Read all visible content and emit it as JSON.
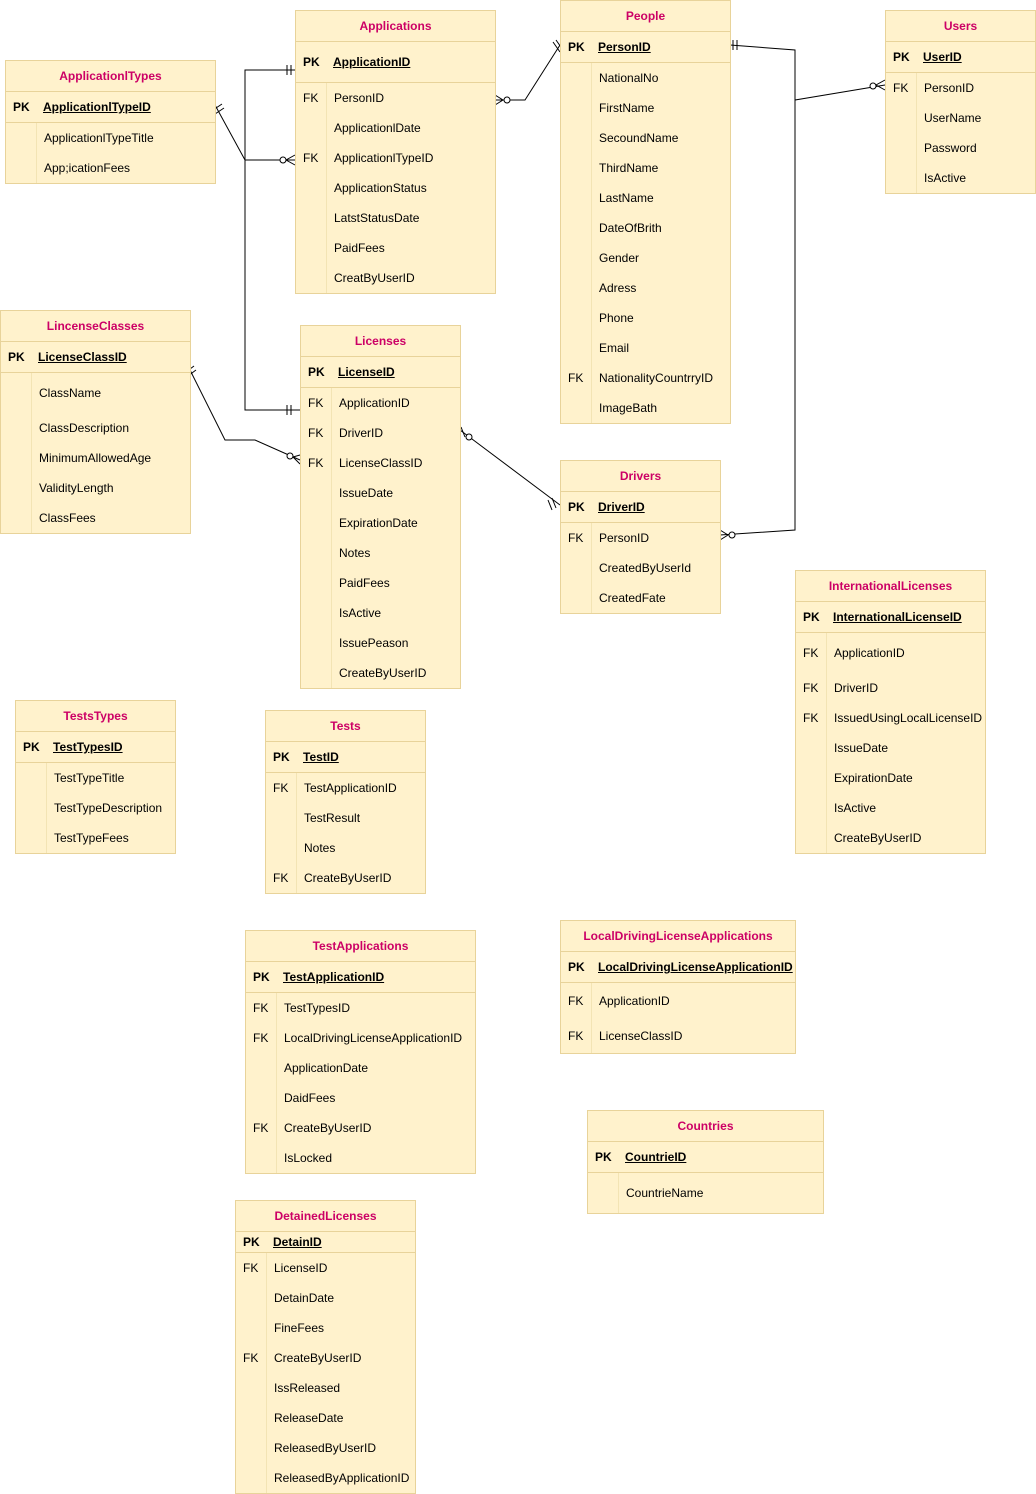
{
  "colors": {
    "title": "#cc0066",
    "fill": "#fff2cc",
    "stroke": "#e8d39a"
  },
  "tables": {
    "applicationtypes": {
      "title": "ApplicationlTypes",
      "pk": "ApplicationlTypeID",
      "rows": [
        {
          "key": "",
          "name": "ApplicationlTypeTitle"
        },
        {
          "key": "",
          "name": "App;icationFees"
        }
      ]
    },
    "applications": {
      "title": "Applications",
      "pk": "ApplicationID",
      "rows": [
        {
          "key": "FK",
          "name": "PersonID"
        },
        {
          "key": "",
          "name": "ApplicationlDate"
        },
        {
          "key": "FK",
          "name": "ApplicationlTypeID"
        },
        {
          "key": "",
          "name": "ApplicationStatus"
        },
        {
          "key": "",
          "name": "LatstStatusDate"
        },
        {
          "key": "",
          "name": "PaidFees"
        },
        {
          "key": "",
          "name": "CreatByUserID"
        }
      ]
    },
    "people": {
      "title": "People",
      "pk": "PersonID",
      "rows": [
        {
          "key": "",
          "name": "NationalNo"
        },
        {
          "key": "",
          "name": "FirstName"
        },
        {
          "key": "",
          "name": "SecoundName"
        },
        {
          "key": "",
          "name": "ThirdName"
        },
        {
          "key": "",
          "name": "LastName"
        },
        {
          "key": "",
          "name": "DateOfBrith"
        },
        {
          "key": "",
          "name": "Gender"
        },
        {
          "key": "",
          "name": "Adress"
        },
        {
          "key": "",
          "name": "Phone"
        },
        {
          "key": "",
          "name": "Email"
        },
        {
          "key": "FK",
          "name": "NationalityCountrryID"
        },
        {
          "key": "",
          "name": "ImageBath"
        }
      ]
    },
    "users": {
      "title": "Users",
      "pk": "UserID",
      "rows": [
        {
          "key": "FK",
          "name": "PersonID"
        },
        {
          "key": "",
          "name": "UserName"
        },
        {
          "key": "",
          "name": "Password"
        },
        {
          "key": "",
          "name": "IsActive"
        }
      ]
    },
    "licenseclasses": {
      "title": "LincenseClasses",
      "pk": "LicenseClassID",
      "rows": [
        {
          "key": "",
          "name": "ClassName"
        },
        {
          "key": "",
          "name": "ClassDescription"
        },
        {
          "key": "",
          "name": "MinimumAllowedAge"
        },
        {
          "key": "",
          "name": "ValidityLength"
        },
        {
          "key": "",
          "name": "ClassFees"
        }
      ]
    },
    "licenses": {
      "title": "Licenses",
      "pk": "LicenseID",
      "rows": [
        {
          "key": "FK",
          "name": "ApplicationID"
        },
        {
          "key": "FK",
          "name": "DriverID"
        },
        {
          "key": "FK",
          "name": "LicenseClassID"
        },
        {
          "key": "",
          "name": "IssueDate"
        },
        {
          "key": "",
          "name": "ExpirationDate"
        },
        {
          "key": "",
          "name": "Notes"
        },
        {
          "key": "",
          "name": "PaidFees"
        },
        {
          "key": "",
          "name": "IsActive"
        },
        {
          "key": "",
          "name": "IssuePeason"
        },
        {
          "key": "",
          "name": "CreateByUserID"
        }
      ]
    },
    "drivers": {
      "title": "Drivers",
      "pk": "DriverID",
      "rows": [
        {
          "key": "FK",
          "name": "PersonID"
        },
        {
          "key": "",
          "name": "CreatedByUserId"
        },
        {
          "key": "",
          "name": "CreatedFate"
        }
      ]
    },
    "international": {
      "title": "InternationalLicenses",
      "pk": "InternationalLicenseID",
      "rows": [
        {
          "key": "FK",
          "name": "ApplicationID"
        },
        {
          "key": "FK",
          "name": "DriverID"
        },
        {
          "key": "FK",
          "name": "IssuedUsingLocalLicenseID"
        },
        {
          "key": "",
          "name": "IssueDate"
        },
        {
          "key": "",
          "name": "ExpirationDate"
        },
        {
          "key": "",
          "name": "IsActive"
        },
        {
          "key": "",
          "name": "CreateByUserID"
        }
      ]
    },
    "teststypes": {
      "title": "TestsTypes",
      "pk": "TestTypesID",
      "rows": [
        {
          "key": "",
          "name": "TestTypeTitle"
        },
        {
          "key": "",
          "name": "TestTypeDescription"
        },
        {
          "key": "",
          "name": "TestTypeFees"
        }
      ]
    },
    "tests": {
      "title": "Tests",
      "pk": "TestID",
      "rows": [
        {
          "key": "FK",
          "name": "TestApplicationID"
        },
        {
          "key": "",
          "name": "TestResult"
        },
        {
          "key": "",
          "name": "Notes"
        },
        {
          "key": "FK",
          "name": "CreateByUserID"
        }
      ]
    },
    "testapplications": {
      "title": "TestApplications",
      "pk": "TestApplicationID",
      "rows": [
        {
          "key": "FK",
          "name": "TestTypesID"
        },
        {
          "key": "FK",
          "name": "LocalDrivingLicenseApplicationID"
        },
        {
          "key": "",
          "name": "ApplicationDate"
        },
        {
          "key": "",
          "name": "DaidFees"
        },
        {
          "key": "FK",
          "name": "CreateByUserID"
        },
        {
          "key": "",
          "name": "IsLocked"
        }
      ]
    },
    "localdriving": {
      "title": "LocalDrivingLicenseApplications",
      "pk": "LocalDrivingLicenseApplicationID",
      "rows": [
        {
          "key": "FK",
          "name": "ApplicationID"
        },
        {
          "key": "FK",
          "name": "LicenseClassID"
        }
      ]
    },
    "countries": {
      "title": "Countries",
      "pk": "CountrieID",
      "rows": [
        {
          "key": "",
          "name": "CountrieName"
        }
      ]
    },
    "detained": {
      "title": "DetainedLicenses",
      "pk": "DetainID",
      "rows": [
        {
          "key": "FK",
          "name": "LicenseID"
        },
        {
          "key": "",
          "name": "DetainDate"
        },
        {
          "key": "",
          "name": "FineFees"
        },
        {
          "key": "FK",
          "name": "CreateByUserID"
        },
        {
          "key": "",
          "name": "IssReleased"
        },
        {
          "key": "",
          "name": "ReleaseDate"
        },
        {
          "key": "",
          "name": "ReleasedByUserID"
        },
        {
          "key": "",
          "name": "ReleasedByApplicationID"
        }
      ]
    }
  }
}
